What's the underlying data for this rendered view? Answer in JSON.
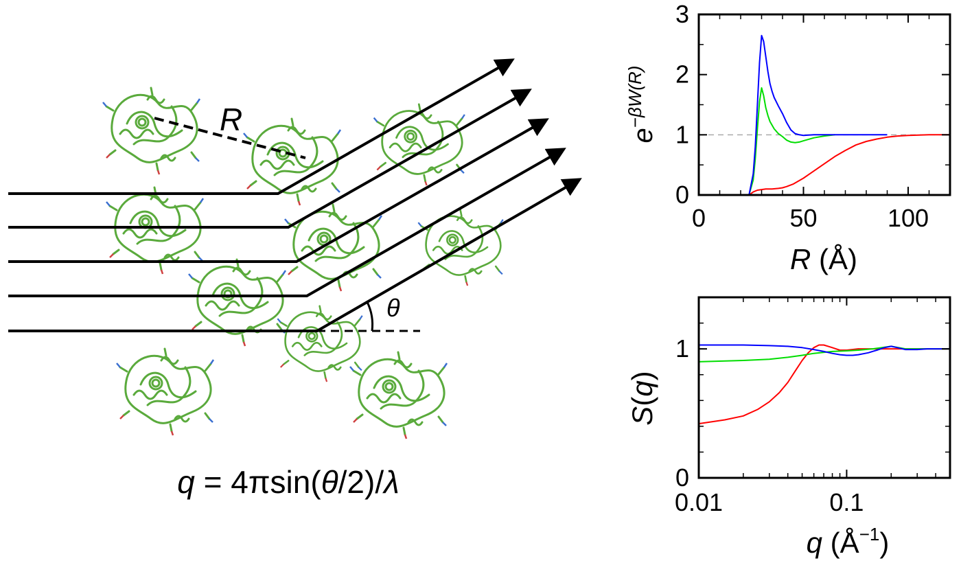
{
  "diagram": {
    "distance_label": "R",
    "angle_label": "θ",
    "formula": {
      "q": "q",
      "mid": " = 4πsin(",
      "theta": "θ",
      "tail": "/2)/",
      "lambda": "λ"
    },
    "beam_count": 5,
    "protein_icon": "protein-ribbon-icon",
    "protein_color": "#5aaa3c"
  },
  "chart_data": [
    {
      "type": "line",
      "id": "pmf",
      "xlabel_var": "R",
      "xlabel_unit": " (Å)",
      "ylabel_base": "e",
      "ylabel_exp": "−βW(R)",
      "xlim": [
        0,
        120
      ],
      "ylim": [
        0,
        3
      ],
      "xticks": [
        "0",
        "50",
        "100"
      ],
      "yticks": [
        "0",
        "1",
        "2",
        "3"
      ],
      "reference_line": 1,
      "series": [
        {
          "color": "#ff0000",
          "x": [
            24,
            26,
            28,
            30,
            32,
            35,
            38,
            40,
            42,
            45,
            50,
            55,
            60,
            65,
            70,
            75,
            80,
            85,
            90,
            95,
            100,
            105,
            110,
            115,
            120
          ],
          "y": [
            0,
            0.05,
            0.08,
            0.09,
            0.1,
            0.1,
            0.11,
            0.12,
            0.14,
            0.18,
            0.28,
            0.4,
            0.52,
            0.64,
            0.74,
            0.83,
            0.89,
            0.93,
            0.96,
            0.98,
            0.99,
            0.995,
            1.0,
            1.0,
            1.0
          ]
        },
        {
          "color": "#00dd00",
          "x": [
            24,
            26,
            27,
            28,
            29,
            30,
            31,
            32,
            33,
            34,
            36,
            38,
            40,
            42,
            44,
            46,
            48,
            50,
            55,
            60,
            65
          ],
          "y": [
            0,
            0.25,
            0.6,
            1.1,
            1.55,
            1.78,
            1.65,
            1.45,
            1.32,
            1.22,
            1.1,
            1.02,
            0.97,
            0.91,
            0.88,
            0.87,
            0.88,
            0.9,
            0.95,
            0.98,
            1.0
          ]
        },
        {
          "color": "#0000ff",
          "x": [
            24,
            26,
            27,
            28,
            29,
            30,
            31,
            32,
            33,
            34,
            35,
            36,
            37,
            38,
            40,
            42,
            44,
            46,
            48,
            50,
            55,
            60,
            70,
            80,
            90
          ],
          "y": [
            0,
            0.35,
            0.8,
            1.5,
            2.2,
            2.65,
            2.55,
            2.3,
            2.05,
            1.85,
            1.72,
            1.62,
            1.55,
            1.48,
            1.35,
            1.2,
            1.08,
            1.02,
            1.0,
            0.99,
            1.0,
            1.0,
            1.0,
            1.0,
            1.0
          ]
        }
      ]
    },
    {
      "type": "line",
      "id": "structure-factor",
      "xlabel_var": "q",
      "xlabel_unit_pre": " (Å",
      "xlabel_unit_exp": "−1",
      "xlabel_unit_post": ")",
      "ylabel_var": "S",
      "ylabel_paren_open": "(",
      "ylabel_arg": "q",
      "ylabel_paren_close": ")",
      "xscale": "log",
      "xlim": [
        0.01,
        0.5
      ],
      "ylim": [
        0,
        1.4
      ],
      "xticks": [
        {
          "v": 0.01,
          "label": "0.01"
        },
        {
          "v": 0.1,
          "label": "0.1"
        }
      ],
      "yticks": [
        "0",
        "1"
      ],
      "series": [
        {
          "color": "#ff0000",
          "x": [
            0.01,
            0.015,
            0.02,
            0.025,
            0.03,
            0.035,
            0.04,
            0.045,
            0.05,
            0.055,
            0.06,
            0.065,
            0.07,
            0.075,
            0.08,
            0.09,
            0.1,
            0.12,
            0.15,
            0.2,
            0.25,
            0.3,
            0.4,
            0.5
          ],
          "y": [
            0.42,
            0.45,
            0.48,
            0.53,
            0.59,
            0.66,
            0.74,
            0.83,
            0.91,
            0.97,
            1.01,
            1.03,
            1.03,
            1.02,
            1.01,
            0.99,
            0.99,
            1.0,
            1.0,
            1.0,
            1.0,
            1.0,
            1.0,
            1.0
          ]
        },
        {
          "color": "#00dd00",
          "x": [
            0.01,
            0.02,
            0.03,
            0.04,
            0.05,
            0.06,
            0.08,
            0.1,
            0.12,
            0.15,
            0.2,
            0.25,
            0.3,
            0.4,
            0.5
          ],
          "y": [
            0.9,
            0.91,
            0.92,
            0.935,
            0.95,
            0.965,
            0.98,
            0.985,
            0.99,
            1.0,
            1.02,
            1.0,
            1.0,
            1.0,
            1.0
          ]
        },
        {
          "color": "#0000ff",
          "x": [
            0.01,
            0.02,
            0.03,
            0.04,
            0.05,
            0.06,
            0.07,
            0.08,
            0.09,
            0.1,
            0.11,
            0.12,
            0.14,
            0.16,
            0.18,
            0.2,
            0.22,
            0.25,
            0.3,
            0.35,
            0.4,
            0.5
          ],
          "y": [
            1.03,
            1.03,
            1.025,
            1.02,
            1.01,
            0.995,
            0.98,
            0.965,
            0.955,
            0.95,
            0.95,
            0.955,
            0.97,
            0.99,
            1.01,
            1.02,
            1.01,
            0.995,
            0.995,
            1.0,
            1.0,
            1.0
          ]
        }
      ]
    }
  ]
}
